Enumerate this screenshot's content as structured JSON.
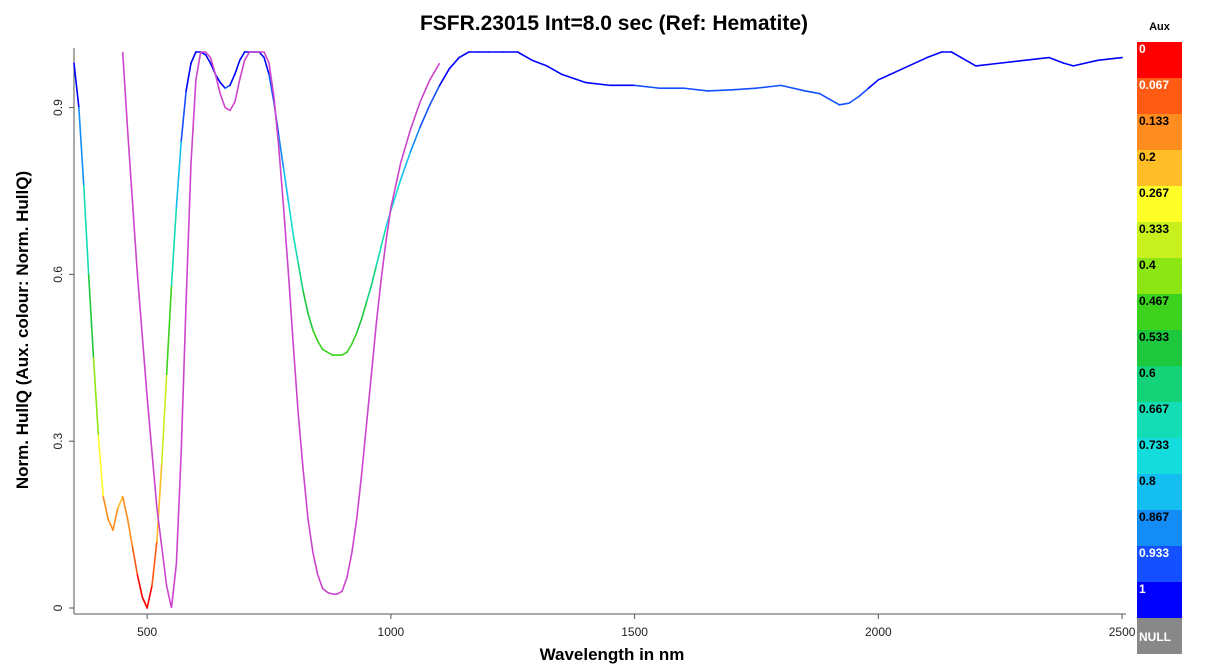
{
  "chart_data": {
    "type": "line",
    "title": "FSFR.23015 Int=8.0 sec  (Ref: Hematite)",
    "xlabel": "Wavelength in nm",
    "ylabel": "Norm. HullQ  (Aux. colour: Norm. HullQ)",
    "xlim": [
      350,
      2500
    ],
    "ylim": [
      0,
      1
    ],
    "x_ticks": [
      500,
      1000,
      1500,
      2000,
      2500
    ],
    "y_ticks": [
      0,
      0.3,
      0.6,
      0.9
    ],
    "y_tick_labels": [
      "0",
      "0.3",
      "0.6",
      "0.9"
    ],
    "grid": false,
    "series": [
      {
        "color_mode": "aux-colormap",
        "x": [
          350,
          360,
          370,
          380,
          390,
          400,
          410,
          420,
          430,
          440,
          450,
          460,
          470,
          480,
          490,
          500,
          510,
          520,
          530,
          540,
          550,
          560,
          570,
          580,
          590,
          600,
          610,
          620,
          630,
          640,
          650,
          660,
          670,
          680,
          690,
          700,
          710,
          720,
          730,
          740,
          750,
          760,
          770,
          780,
          790,
          800,
          810,
          820,
          830,
          840,
          850,
          860,
          870,
          880,
          890,
          900,
          910,
          920,
          930,
          940,
          950,
          960,
          970,
          980,
          990,
          1000,
          1020,
          1040,
          1060,
          1080,
          1100,
          1120,
          1140,
          1160,
          1180,
          1200,
          1230,
          1260,
          1290,
          1320,
          1350,
          1400,
          1450,
          1500,
          1550,
          1600,
          1650,
          1700,
          1750,
          1800,
          1850,
          1880,
          1900,
          1920,
          1940,
          1960,
          1980,
          2000,
          2050,
          2100,
          2130,
          2150,
          2170,
          2200,
          2250,
          2300,
          2350,
          2380,
          2400,
          2450,
          2500
        ],
        "y": [
          0.98,
          0.9,
          0.76,
          0.6,
          0.45,
          0.31,
          0.2,
          0.16,
          0.14,
          0.18,
          0.2,
          0.16,
          0.11,
          0.06,
          0.02,
          0.0,
          0.04,
          0.12,
          0.26,
          0.42,
          0.58,
          0.72,
          0.84,
          0.93,
          0.98,
          1.0,
          1.0,
          0.995,
          0.98,
          0.96,
          0.945,
          0.935,
          0.94,
          0.96,
          0.985,
          1.0,
          1.0,
          1.0,
          1.0,
          0.99,
          0.96,
          0.91,
          0.85,
          0.79,
          0.73,
          0.67,
          0.62,
          0.57,
          0.53,
          0.5,
          0.48,
          0.465,
          0.46,
          0.455,
          0.455,
          0.455,
          0.46,
          0.475,
          0.495,
          0.52,
          0.55,
          0.58,
          0.615,
          0.65,
          0.685,
          0.715,
          0.77,
          0.82,
          0.865,
          0.905,
          0.94,
          0.97,
          0.99,
          1.0,
          1.0,
          1.0,
          1.0,
          1.0,
          0.985,
          0.975,
          0.96,
          0.945,
          0.94,
          0.94,
          0.935,
          0.935,
          0.93,
          0.932,
          0.935,
          0.94,
          0.93,
          0.925,
          0.915,
          0.905,
          0.908,
          0.92,
          0.935,
          0.95,
          0.97,
          0.99,
          1.0,
          1.0,
          0.99,
          0.975,
          0.98,
          0.985,
          0.99,
          0.98,
          0.975,
          0.985,
          0.99
        ]
      },
      {
        "name": "Ref: Hematite",
        "color": "#cc44cc",
        "x": [
          450,
          460,
          480,
          500,
          520,
          540,
          550,
          560,
          570,
          580,
          590,
          600,
          610,
          620,
          630,
          640,
          650,
          660,
          670,
          680,
          690,
          700,
          710,
          720,
          730,
          740,
          750,
          760,
          770,
          780,
          790,
          800,
          810,
          820,
          830,
          840,
          850,
          860,
          870,
          880,
          890,
          900,
          910,
          920,
          930,
          940,
          950,
          960,
          970,
          980,
          990,
          1000,
          1020,
          1040,
          1060,
          1080,
          1100
        ],
        "y": [
          1.0,
          0.86,
          0.6,
          0.38,
          0.18,
          0.04,
          0.0,
          0.08,
          0.28,
          0.55,
          0.8,
          0.95,
          1.0,
          1.0,
          0.99,
          0.96,
          0.925,
          0.9,
          0.895,
          0.91,
          0.95,
          0.985,
          1.0,
          1.0,
          1.0,
          1.0,
          0.98,
          0.92,
          0.83,
          0.72,
          0.6,
          0.47,
          0.35,
          0.25,
          0.16,
          0.1,
          0.06,
          0.035,
          0.028,
          0.025,
          0.025,
          0.03,
          0.055,
          0.1,
          0.16,
          0.24,
          0.33,
          0.42,
          0.51,
          0.59,
          0.66,
          0.72,
          0.8,
          0.86,
          0.91,
          0.95,
          0.98
        ]
      }
    ],
    "colorbar": {
      "title": "Aux",
      "levels": [
        "0",
        "0.067",
        "0.133",
        "0.2",
        "0.267",
        "0.333",
        "0.4",
        "0.467",
        "0.533",
        "0.6",
        "0.667",
        "0.733",
        "0.8",
        "0.867",
        "0.933",
        "1",
        "NULL"
      ],
      "colors": [
        "#ff0000",
        "#ff5a14",
        "#ff8c1e",
        "#ffbe28",
        "#ffff28",
        "#c8f01e",
        "#8ce614",
        "#3cd21e",
        "#1ec83c",
        "#14d278",
        "#14dcb4",
        "#14dcdc",
        "#14bef0",
        "#148cf5",
        "#1450ff",
        "#0000ff",
        "#888888"
      ],
      "light_text": [
        "0",
        "0.067",
        "0.933",
        "1",
        "NULL"
      ]
    }
  }
}
